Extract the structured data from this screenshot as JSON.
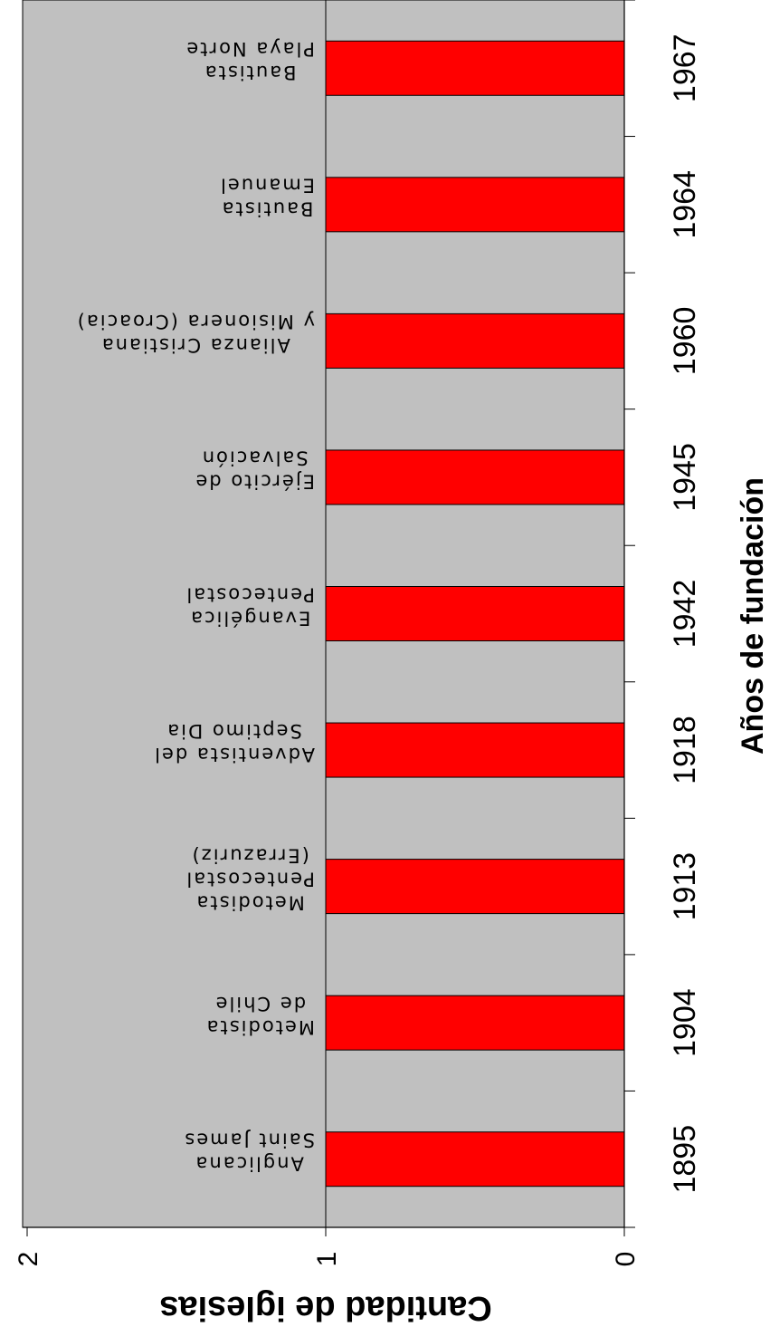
{
  "chart_data": {
    "type": "bar",
    "orientation": "rotated",
    "title": "",
    "xlabel": "Años de fundación",
    "ylabel": "Cantidad de iglesias",
    "categories": [
      "1895",
      "1904",
      "1913",
      "1918",
      "1942",
      "1945",
      "1960",
      "1964",
      "1967"
    ],
    "bar_labels": [
      [
        "Anglicana",
        "Saint James"
      ],
      [
        "Metodista",
        "de Chile"
      ],
      [
        "Metodista",
        "Pentecostal",
        "(Errazuriz)"
      ],
      [
        "Adventista del",
        "Septimo Dia"
      ],
      [
        "Evangélica",
        "Pentecostal"
      ],
      [
        "Ejército de",
        "Salvación"
      ],
      [
        "Alianza Cristiana",
        "y Misionera (Croacia)"
      ],
      [
        "Bautista",
        "Emanuel"
      ],
      [
        "Bautista",
        "Playa Norte"
      ]
    ],
    "values": [
      1,
      1,
      1,
      1,
      1,
      1,
      1,
      1,
      1
    ],
    "ylim": [
      0,
      2
    ],
    "yticks": [
      "0",
      "1",
      "2"
    ],
    "grid": true,
    "colors": {
      "bar": "#ff0000",
      "plot_background": "#c0c0c0",
      "axis": "#000000"
    }
  }
}
